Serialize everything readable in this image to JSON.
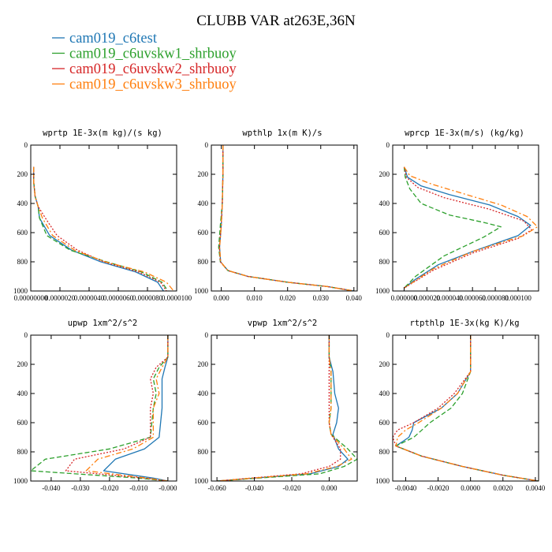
{
  "chart_data": {
    "title": "CLUBB VAR at263E,36N",
    "legend": [
      {
        "name": "cam019_c6test",
        "color": "#1f77b4",
        "dash": "solid"
      },
      {
        "name": "cam019_c6uvskw1_shrbuoy",
        "color": "#2ca02c",
        "dash": "dashed"
      },
      {
        "name": "cam019_c6uvskw2_shrbuoy",
        "color": "#d62728",
        "dash": "dotted"
      },
      {
        "name": "cam019_c6uvskw3_shrbuoy",
        "color": "#ff7f0e",
        "dash": "dashdot"
      }
    ],
    "panels": [
      {
        "type": "line",
        "title": "wprtp  1E-3x(m kg)/(s kg)",
        "xlim": [
          0,
          1e-05
        ],
        "ylim": [
          1000,
          0
        ],
        "yticks": [
          0,
          200,
          400,
          600,
          800,
          1000
        ],
        "xticks": [
          {
            "v": 0.0,
            "label": "0.00000000"
          },
          {
            "v": 2e-06,
            "label": "0.0000020"
          },
          {
            "v": 4e-06,
            "label": "0.0000040"
          },
          {
            "v": 6e-06,
            "label": "0.0000060"
          },
          {
            "v": 8e-06,
            "label": "0.0000080"
          },
          {
            "v": 1e-05,
            "label": "0.0000100"
          }
        ],
        "series": [
          {
            "x": [
              2e-07,
              2e-07,
              3e-07,
              5e-07,
              6e-07,
              1.3e-06,
              2.8e-06,
              4.8e-06,
              7.2e-06,
              8.7e-06,
              9.1e-06
            ],
            "y": [
              150,
              250,
              350,
              420,
              500,
              620,
              720,
              800,
              870,
              940,
              1000
            ]
          },
          {
            "x": [
              2e-07,
              2e-07,
              3e-07,
              5e-07,
              6e-07,
              1.1e-06,
              2.7e-06,
              5.2e-06,
              7.6e-06,
              9e-06,
              9.4e-06
            ],
            "y": [
              150,
              250,
              350,
              420,
              500,
              620,
              720,
              800,
              870,
              940,
              1000
            ]
          },
          {
            "x": [
              2e-07,
              2e-07,
              3e-07,
              5e-07,
              1e-06,
              1.8e-06,
              3.2e-06,
              5e-06,
              7.4e-06,
              8.9e-06,
              9.3e-06
            ],
            "y": [
              150,
              250,
              350,
              420,
              500,
              620,
              720,
              800,
              870,
              940,
              1000
            ]
          },
          {
            "x": [
              2e-07,
              2e-07,
              3e-07,
              5e-07,
              8e-07,
              1.5e-06,
              3e-06,
              5.1e-06,
              7.8e-06,
              9.3e-06,
              9.8e-06
            ],
            "y": [
              150,
              250,
              350,
              420,
              500,
              620,
              720,
              800,
              870,
              940,
              1000
            ]
          }
        ]
      },
      {
        "type": "line",
        "title": "wpthlp  1x(m K)/s",
        "xlim": [
          -0.003,
          0.041
        ],
        "ylim": [
          1000,
          0
        ],
        "yticks": [
          0,
          200,
          400,
          600,
          800,
          1000
        ],
        "xticks": [
          {
            "v": 0.0,
            "label": "0.000"
          },
          {
            "v": 0.01,
            "label": "0.010"
          },
          {
            "v": 0.02,
            "label": "0.020"
          },
          {
            "v": 0.03,
            "label": "0.030"
          },
          {
            "v": 0.04,
            "label": "0.040"
          }
        ],
        "series": [
          {
            "x": [
              0.0005,
              0.0005,
              0.0003,
              0.0,
              -0.0005,
              -0.0002,
              0.002,
              0.008,
              0.02,
              0.032,
              0.04
            ],
            "y": [
              0,
              200,
              400,
              550,
              700,
              800,
              860,
              900,
              940,
              970,
              1000
            ]
          },
          {
            "x": [
              0.0005,
              0.0005,
              0.0003,
              -0.0003,
              -0.0008,
              -0.0003,
              0.002,
              0.008,
              0.02,
              0.032,
              0.04
            ],
            "y": [
              0,
              200,
              400,
              550,
              700,
              800,
              860,
              900,
              940,
              970,
              1000
            ]
          },
          {
            "x": [
              0.0005,
              0.0005,
              0.0003,
              0.0,
              -0.0006,
              -0.0003,
              0.002,
              0.008,
              0.02,
              0.032,
              0.04
            ],
            "y": [
              0,
              200,
              400,
              550,
              700,
              800,
              860,
              900,
              940,
              970,
              1000
            ]
          },
          {
            "x": [
              0.0005,
              0.0005,
              0.0003,
              0.0,
              -0.0005,
              -0.0002,
              0.002,
              0.008,
              0.02,
              0.032,
              0.04
            ],
            "y": [
              0,
              200,
              400,
              550,
              700,
              800,
              860,
              900,
              940,
              970,
              1000
            ]
          }
        ]
      },
      {
        "type": "line",
        "title": "wprcp  1E-3x(m/s) (kg/kg)",
        "xlim": [
          -1e-05,
          0.000118
        ],
        "ylim": [
          1000,
          0
        ],
        "yticks": [
          0,
          200,
          400,
          600,
          800,
          1000
        ],
        "xticks": [
          {
            "v": 0.0,
            "label": "0.000000"
          },
          {
            "v": 2e-05,
            "label": "0.000020"
          },
          {
            "v": 4e-05,
            "label": "0.000040"
          },
          {
            "v": 6e-05,
            "label": "0.000060"
          },
          {
            "v": 8e-05,
            "label": "0.000080"
          },
          {
            "v": 0.0001,
            "label": "0.000100"
          }
        ],
        "series": [
          {
            "x": [
              0.0,
              3e-06,
              1.5e-05,
              4e-05,
              7.5e-05,
              0.0001,
              0.000111,
              0.0001,
              6e-05,
              3e-05,
              1e-05,
              0.0
            ],
            "y": [
              150,
              220,
              280,
              340,
              410,
              490,
              550,
              620,
              730,
              820,
              920,
              980
            ]
          },
          {
            "x": [
              0.0,
              1e-06,
              5e-06,
              1.5e-05,
              4e-05,
              7e-05,
              8.5e-05,
              7e-05,
              3.5e-05,
              1e-05,
              0.0
            ],
            "y": [
              150,
              220,
              300,
              400,
              480,
              530,
              560,
              630,
              760,
              900,
              980
            ]
          },
          {
            "x": [
              0.0,
              2e-06,
              1.2e-05,
              3.5e-05,
              7.5e-05,
              0.000105,
              0.000112,
              0.0001,
              6e-05,
              2.5e-05,
              0.0
            ],
            "y": [
              150,
              220,
              290,
              360,
              440,
              520,
              580,
              640,
              740,
              860,
              980
            ]
          },
          {
            "x": [
              0.0,
              5e-06,
              2.5e-05,
              5.5e-05,
              8.5e-05,
              0.000108,
              0.000117,
              0.000105,
              6e-05,
              2.5e-05,
              0.0
            ],
            "y": [
              150,
              210,
              270,
              340,
              410,
              490,
              560,
              620,
              730,
              850,
              980
            ]
          }
        ]
      },
      {
        "type": "line",
        "title": "upwp  1xm^2/s^2",
        "xlim": [
          -0.047,
          0.003
        ],
        "ylim": [
          1000,
          0
        ],
        "yticks": [
          0,
          200,
          400,
          600,
          800,
          1000
        ],
        "xticks": [
          {
            "v": -0.04,
            "label": "-0.040"
          },
          {
            "v": -0.03,
            "label": "-0.030"
          },
          {
            "v": -0.02,
            "label": "-0.020"
          },
          {
            "v": -0.01,
            "label": "-0.010"
          },
          {
            "v": 0.0,
            "label": "-0.000"
          }
        ],
        "series": [
          {
            "x": [
              0.0,
              0.0,
              -0.001,
              -0.002,
              -0.002,
              -0.002,
              -0.003,
              -0.008,
              -0.018,
              -0.022,
              -0.005,
              0.0
            ],
            "y": [
              0,
              150,
              220,
              300,
              400,
              500,
              700,
              780,
              850,
              930,
              980,
              1000
            ]
          },
          {
            "x": [
              0.0,
              0.0,
              -0.003,
              -0.005,
              -0.004,
              -0.005,
              -0.006,
              -0.02,
              -0.042,
              -0.047,
              -0.01,
              0.0
            ],
            "y": [
              0,
              150,
              220,
              300,
              400,
              500,
              700,
              780,
              850,
              930,
              980,
              1000
            ]
          },
          {
            "x": [
              0.0,
              0.0,
              -0.004,
              -0.006,
              -0.005,
              -0.006,
              -0.006,
              -0.015,
              -0.032,
              -0.035,
              -0.008,
              0.0
            ],
            "y": [
              0,
              150,
              220,
              300,
              400,
              500,
              700,
              780,
              850,
              930,
              980,
              1000
            ]
          },
          {
            "x": [
              0.0,
              0.0,
              -0.002,
              -0.004,
              -0.003,
              -0.005,
              -0.005,
              -0.012,
              -0.024,
              -0.028,
              -0.007,
              0.0
            ],
            "y": [
              0,
              150,
              220,
              300,
              400,
              500,
              700,
              780,
              850,
              930,
              980,
              1000
            ]
          }
        ]
      },
      {
        "type": "line",
        "title": "vpwp  1xm^2/s^2",
        "xlim": [
          -0.063,
          0.015
        ],
        "ylim": [
          1000,
          0
        ],
        "yticks": [
          0,
          200,
          400,
          600,
          800,
          1000
        ],
        "xticks": [
          {
            "v": -0.06,
            "label": "-0.060"
          },
          {
            "v": -0.04,
            "label": "-0.040"
          },
          {
            "v": -0.02,
            "label": "-0.020"
          },
          {
            "v": 0.0,
            "label": "0.000"
          }
        ],
        "series": [
          {
            "x": [
              0.0,
              0.0,
              0.002,
              0.003,
              0.005,
              0.004,
              0.002,
              0.005,
              0.01,
              0.005,
              -0.01,
              -0.06
            ],
            "y": [
              0,
              150,
              250,
              400,
              500,
              600,
              680,
              780,
              850,
              900,
              950,
              1000
            ]
          },
          {
            "x": [
              0.0,
              0.0,
              0.001,
              0.001,
              0.001,
              0.0,
              0.001,
              0.01,
              0.015,
              0.008,
              -0.005,
              -0.06
            ],
            "y": [
              0,
              150,
              250,
              400,
              500,
              600,
              680,
              780,
              850,
              900,
              950,
              1000
            ]
          },
          {
            "x": [
              0.0,
              0.0,
              0.0,
              0.0,
              0.0,
              0.0,
              0.001,
              0.006,
              0.006,
              0.0,
              -0.015,
              -0.06
            ],
            "y": [
              0,
              150,
              250,
              400,
              500,
              600,
              680,
              780,
              850,
              900,
              950,
              1000
            ]
          },
          {
            "x": [
              0.0,
              0.0,
              0.001,
              0.001,
              0.001,
              0.0,
              0.001,
              0.008,
              0.012,
              0.004,
              -0.012,
              -0.06
            ],
            "y": [
              0,
              150,
              250,
              400,
              500,
              600,
              680,
              780,
              850,
              900,
              950,
              1000
            ]
          }
        ]
      },
      {
        "type": "line",
        "title": "rtpthlp  1E-3x(kg K)/kg",
        "xlim": [
          -0.0048,
          0.0042
        ],
        "ylim": [
          1000,
          0
        ],
        "yticks": [
          0,
          200,
          400,
          600,
          800,
          1000
        ],
        "xticks": [
          {
            "v": -0.004,
            "label": "-0.0040"
          },
          {
            "v": -0.002,
            "label": "-0.0020"
          },
          {
            "v": 0.0,
            "label": "0.0000"
          },
          {
            "v": 0.002,
            "label": "0.0020"
          },
          {
            "v": 0.004,
            "label": "0.0040"
          }
        ],
        "series": [
          {
            "x": [
              0.0,
              0.0,
              -0.0008,
              -0.0018,
              -0.0035,
              -0.0036,
              -0.0038,
              -0.0046,
              -0.003,
              -0.0005,
              0.002,
              0.0042
            ],
            "y": [
              0,
              250,
              400,
              500,
              600,
              650,
              700,
              760,
              830,
              900,
              960,
              1000
            ]
          },
          {
            "x": [
              0.0,
              0.0,
              -0.0005,
              -0.0012,
              -0.0025,
              -0.003,
              -0.0035,
              -0.0046,
              -0.003,
              -0.0005,
              0.002,
              0.0042
            ],
            "y": [
              0,
              250,
              400,
              500,
              600,
              650,
              700,
              760,
              830,
              900,
              960,
              1000
            ]
          },
          {
            "x": [
              0.0,
              0.0,
              -0.001,
              -0.002,
              -0.0035,
              -0.0045,
              -0.0048,
              -0.0046,
              -0.003,
              -0.0005,
              0.002,
              0.0042
            ],
            "y": [
              0,
              250,
              400,
              500,
              600,
              650,
              700,
              760,
              830,
              900,
              960,
              1000
            ]
          },
          {
            "x": [
              0.0,
              0.0,
              -0.0008,
              -0.0018,
              -0.0032,
              -0.004,
              -0.0045,
              -0.0046,
              -0.003,
              -0.0005,
              0.002,
              0.0042
            ],
            "y": [
              0,
              250,
              400,
              500,
              600,
              650,
              700,
              760,
              830,
              900,
              960,
              1000
            ]
          }
        ]
      }
    ]
  }
}
